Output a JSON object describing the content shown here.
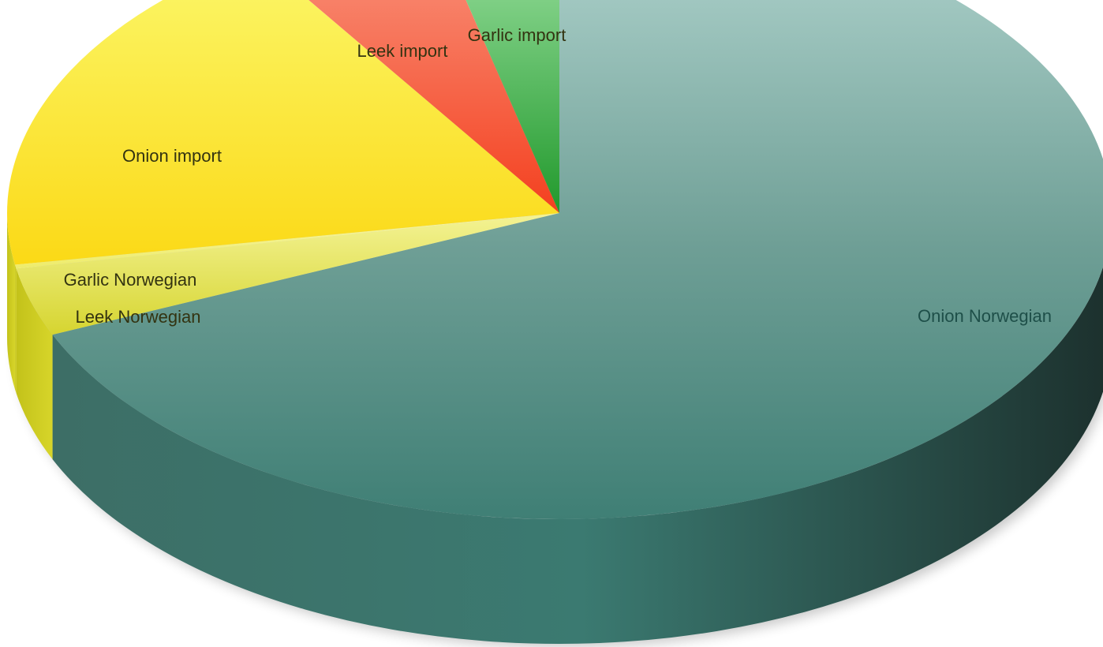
{
  "chart_data": {
    "type": "pie",
    "style": "3d",
    "title": "",
    "start_position": "12 o'clock",
    "direction": "clockwise",
    "slices": [
      {
        "label": "Onion Norwegian",
        "value": 68.5,
        "color": "#4a8a7e",
        "label_color": "#1e4f49"
      },
      {
        "label": "Leek Norwegian",
        "value": 3.6,
        "color": "#d8d638",
        "label_color": "#333311"
      },
      {
        "label": "Garlic Norwegian",
        "value": 0.2,
        "color": "#f2f08a",
        "label_color": "#333311"
      },
      {
        "label": "Onion import",
        "value": 18.5,
        "color": "#f7e43a",
        "label_color": "#333311"
      },
      {
        "label": "Leek import",
        "value": 5.4,
        "color": "#f25a3a",
        "label_color": "#333311"
      },
      {
        "label": "Garlic import",
        "value": 3.8,
        "color": "#58c46c",
        "label_color": "#333311"
      }
    ]
  }
}
